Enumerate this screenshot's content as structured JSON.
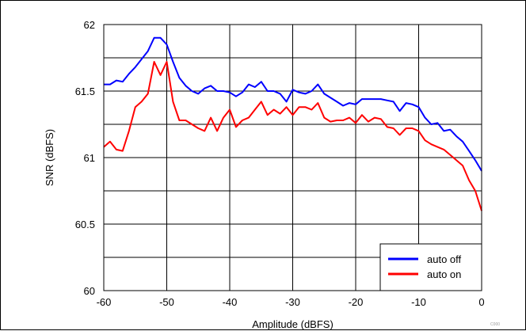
{
  "corner_id": "C000",
  "chart_data": {
    "type": "line",
    "title": "",
    "xlabel": "Amplitude (dBFS)",
    "ylabel": "SNR (dBFS)",
    "xlim": [
      -60,
      0
    ],
    "ylim": [
      60,
      62
    ],
    "x_ticks": [
      -60,
      -50,
      -40,
      -30,
      -20,
      -10,
      0
    ],
    "y_ticks": [
      60,
      60.5,
      61,
      61.5,
      62
    ],
    "x_tick_labels": [
      "-60",
      "-50",
      "-40",
      "-30",
      "-20",
      "-10",
      "0"
    ],
    "y_tick_labels": [
      "60",
      "60.5",
      "61",
      "61.5",
      "62"
    ],
    "grid": true,
    "legend_position": "bottom-right",
    "series": [
      {
        "name": "auto off",
        "color": "#0000ff",
        "x": [
          -60,
          -59,
          -58,
          -57,
          -56,
          -55,
          -54,
          -53,
          -52,
          -51,
          -50,
          -49,
          -48,
          -47,
          -46,
          -45,
          -44,
          -43,
          -42,
          -41,
          -40,
          -39,
          -38,
          -37,
          -36,
          -35,
          -34,
          -33,
          -32,
          -31,
          -30,
          -29,
          -28,
          -27,
          -26,
          -25,
          -24,
          -23,
          -22,
          -21,
          -20,
          -19,
          -18,
          -17,
          -16,
          -15,
          -14,
          -13,
          -12,
          -11,
          -10,
          -9,
          -8,
          -7,
          -6,
          -5,
          -4,
          -3,
          -2,
          -1,
          0
        ],
        "values": [
          61.55,
          61.55,
          61.58,
          61.57,
          61.63,
          61.68,
          61.74,
          61.8,
          61.9,
          61.9,
          61.85,
          61.72,
          61.6,
          61.54,
          61.5,
          61.48,
          61.52,
          61.54,
          61.5,
          61.5,
          61.49,
          61.46,
          61.49,
          61.55,
          61.53,
          61.57,
          61.5,
          61.5,
          61.48,
          61.42,
          61.51,
          61.49,
          61.48,
          61.5,
          61.55,
          61.48,
          61.45,
          61.42,
          61.39,
          61.41,
          61.4,
          61.44,
          61.44,
          61.44,
          61.44,
          61.43,
          61.42,
          61.35,
          61.41,
          61.4,
          61.38,
          61.3,
          61.25,
          61.26,
          61.2,
          61.21,
          61.16,
          61.12,
          61.05,
          60.98,
          60.9
        ]
      },
      {
        "name": "auto on",
        "color": "#ff0000",
        "x": [
          -60,
          -59,
          -58,
          -57,
          -56,
          -55,
          -54,
          -53,
          -52,
          -51,
          -50,
          -49,
          -48,
          -47,
          -46,
          -45,
          -44,
          -43,
          -42,
          -41,
          -40,
          -39,
          -38,
          -37,
          -36,
          -35,
          -34,
          -33,
          -32,
          -31,
          -30,
          -29,
          -28,
          -27,
          -26,
          -25,
          -24,
          -23,
          -22,
          -21,
          -20,
          -19,
          -18,
          -17,
          -16,
          -15,
          -14,
          -13,
          -12,
          -11,
          -10,
          -9,
          -8,
          -7,
          -6,
          -5,
          -4,
          -3,
          -2,
          -1,
          0
        ],
        "values": [
          61.08,
          61.12,
          61.06,
          61.05,
          61.2,
          61.38,
          61.42,
          61.48,
          61.72,
          61.62,
          61.72,
          61.42,
          61.28,
          61.28,
          61.25,
          61.22,
          61.2,
          61.3,
          61.2,
          61.3,
          61.36,
          61.23,
          61.28,
          61.3,
          61.36,
          61.42,
          61.32,
          61.36,
          61.33,
          61.38,
          61.32,
          61.38,
          61.38,
          61.36,
          61.41,
          61.3,
          61.27,
          61.28,
          61.28,
          61.3,
          61.26,
          61.32,
          61.27,
          61.3,
          61.29,
          61.23,
          61.22,
          61.17,
          61.22,
          61.22,
          61.2,
          61.13,
          61.1,
          61.08,
          61.06,
          61.02,
          60.98,
          60.94,
          60.83,
          60.75,
          60.6
        ]
      }
    ]
  }
}
